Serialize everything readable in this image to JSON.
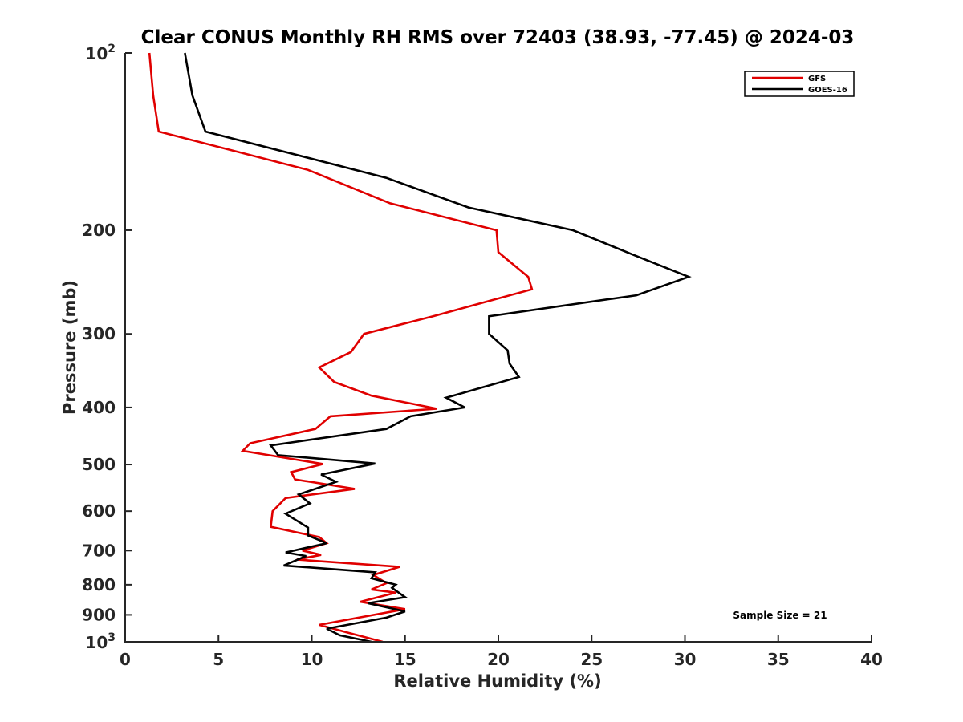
{
  "chart_data": {
    "type": "line",
    "title": "Clear CONUS Monthly RH RMS over 72403 (38.93, -77.45) @ 2024-03",
    "xlabel": "Relative Humidity (%)",
    "ylabel": "Pressure (mb)",
    "xlim": [
      0,
      40
    ],
    "ylim": [
      100,
      1000
    ],
    "yscale": "log",
    "y_reversed": true,
    "grid": false,
    "legend_position": "top-right",
    "x_ticks": [
      "0",
      "5",
      "10",
      "15",
      "20",
      "25",
      "30",
      "35",
      "40"
    ],
    "y_ticks": [
      {
        "value": 100,
        "base": "10",
        "exp": "2"
      },
      {
        "value": 200,
        "label": "200"
      },
      {
        "value": 300,
        "label": "300"
      },
      {
        "value": 400,
        "label": "400"
      },
      {
        "value": 500,
        "label": "500"
      },
      {
        "value": 600,
        "label": "600"
      },
      {
        "value": 700,
        "label": "700"
      },
      {
        "value": 800,
        "label": "800"
      },
      {
        "value": 900,
        "label": "900"
      },
      {
        "value": 1000,
        "base": "10",
        "exp": "3"
      }
    ],
    "annotation": "Sample Size = 21",
    "series": [
      {
        "name": "GFS",
        "color": "#e00000",
        "points": [
          [
            1.3,
            100
          ],
          [
            1.5,
            118
          ],
          [
            1.8,
            136
          ],
          [
            9.8,
            158
          ],
          [
            14.2,
            180
          ],
          [
            19.9,
            200
          ],
          [
            20.0,
            218
          ],
          [
            21.6,
            240
          ],
          [
            21.8,
            252
          ],
          [
            16.5,
            280
          ],
          [
            12.8,
            300
          ],
          [
            12.1,
            322
          ],
          [
            10.4,
            342
          ],
          [
            11.2,
            362
          ],
          [
            13.2,
            382
          ],
          [
            16.7,
            402
          ],
          [
            11.0,
            414
          ],
          [
            10.2,
            435
          ],
          [
            6.7,
            460
          ],
          [
            6.3,
            474
          ],
          [
            10.6,
            499
          ],
          [
            8.9,
            515
          ],
          [
            9.1,
            530
          ],
          [
            12.3,
            550
          ],
          [
            8.6,
            570
          ],
          [
            7.9,
            600
          ],
          [
            7.8,
            638
          ],
          [
            10.4,
            664
          ],
          [
            10.8,
            680
          ],
          [
            9.5,
            700
          ],
          [
            10.5,
            712
          ],
          [
            9.2,
            725
          ],
          [
            14.7,
            746
          ],
          [
            13.3,
            770
          ],
          [
            14.0,
            795
          ],
          [
            13.2,
            815
          ],
          [
            14.5,
            825
          ],
          [
            12.6,
            855
          ],
          [
            15.0,
            880
          ],
          [
            10.4,
            936
          ],
          [
            12.0,
            966
          ],
          [
            13.8,
            1000
          ]
        ]
      },
      {
        "name": "GOES-16",
        "color": "#000000",
        "points": [
          [
            3.2,
            100
          ],
          [
            3.6,
            118
          ],
          [
            4.3,
            136
          ],
          [
            14.0,
            163
          ],
          [
            18.4,
            183
          ],
          [
            24.0,
            200
          ],
          [
            27.2,
            220
          ],
          [
            30.2,
            240
          ],
          [
            27.4,
            258
          ],
          [
            19.5,
            280
          ],
          [
            19.5,
            300
          ],
          [
            20.5,
            320
          ],
          [
            20.6,
            337
          ],
          [
            21.1,
            355
          ],
          [
            17.2,
            385
          ],
          [
            18.2,
            400
          ],
          [
            15.3,
            414
          ],
          [
            14.0,
            435
          ],
          [
            7.8,
            464
          ],
          [
            8.2,
            482
          ],
          [
            13.4,
            498
          ],
          [
            10.5,
            520
          ],
          [
            11.3,
            535
          ],
          [
            9.3,
            562
          ],
          [
            9.9,
            582
          ],
          [
            8.6,
            606
          ],
          [
            9.8,
            640
          ],
          [
            9.8,
            660
          ],
          [
            10.8,
            680
          ],
          [
            8.6,
            705
          ],
          [
            9.7,
            715
          ],
          [
            8.5,
            742
          ],
          [
            13.4,
            762
          ],
          [
            13.2,
            780
          ],
          [
            14.5,
            800
          ],
          [
            14.3,
            810
          ],
          [
            15.0,
            840
          ],
          [
            13.0,
            860
          ],
          [
            15.0,
            888
          ],
          [
            14.0,
            910
          ],
          [
            10.8,
            950
          ],
          [
            11.5,
            975
          ],
          [
            13.2,
            1000
          ]
        ]
      }
    ]
  }
}
